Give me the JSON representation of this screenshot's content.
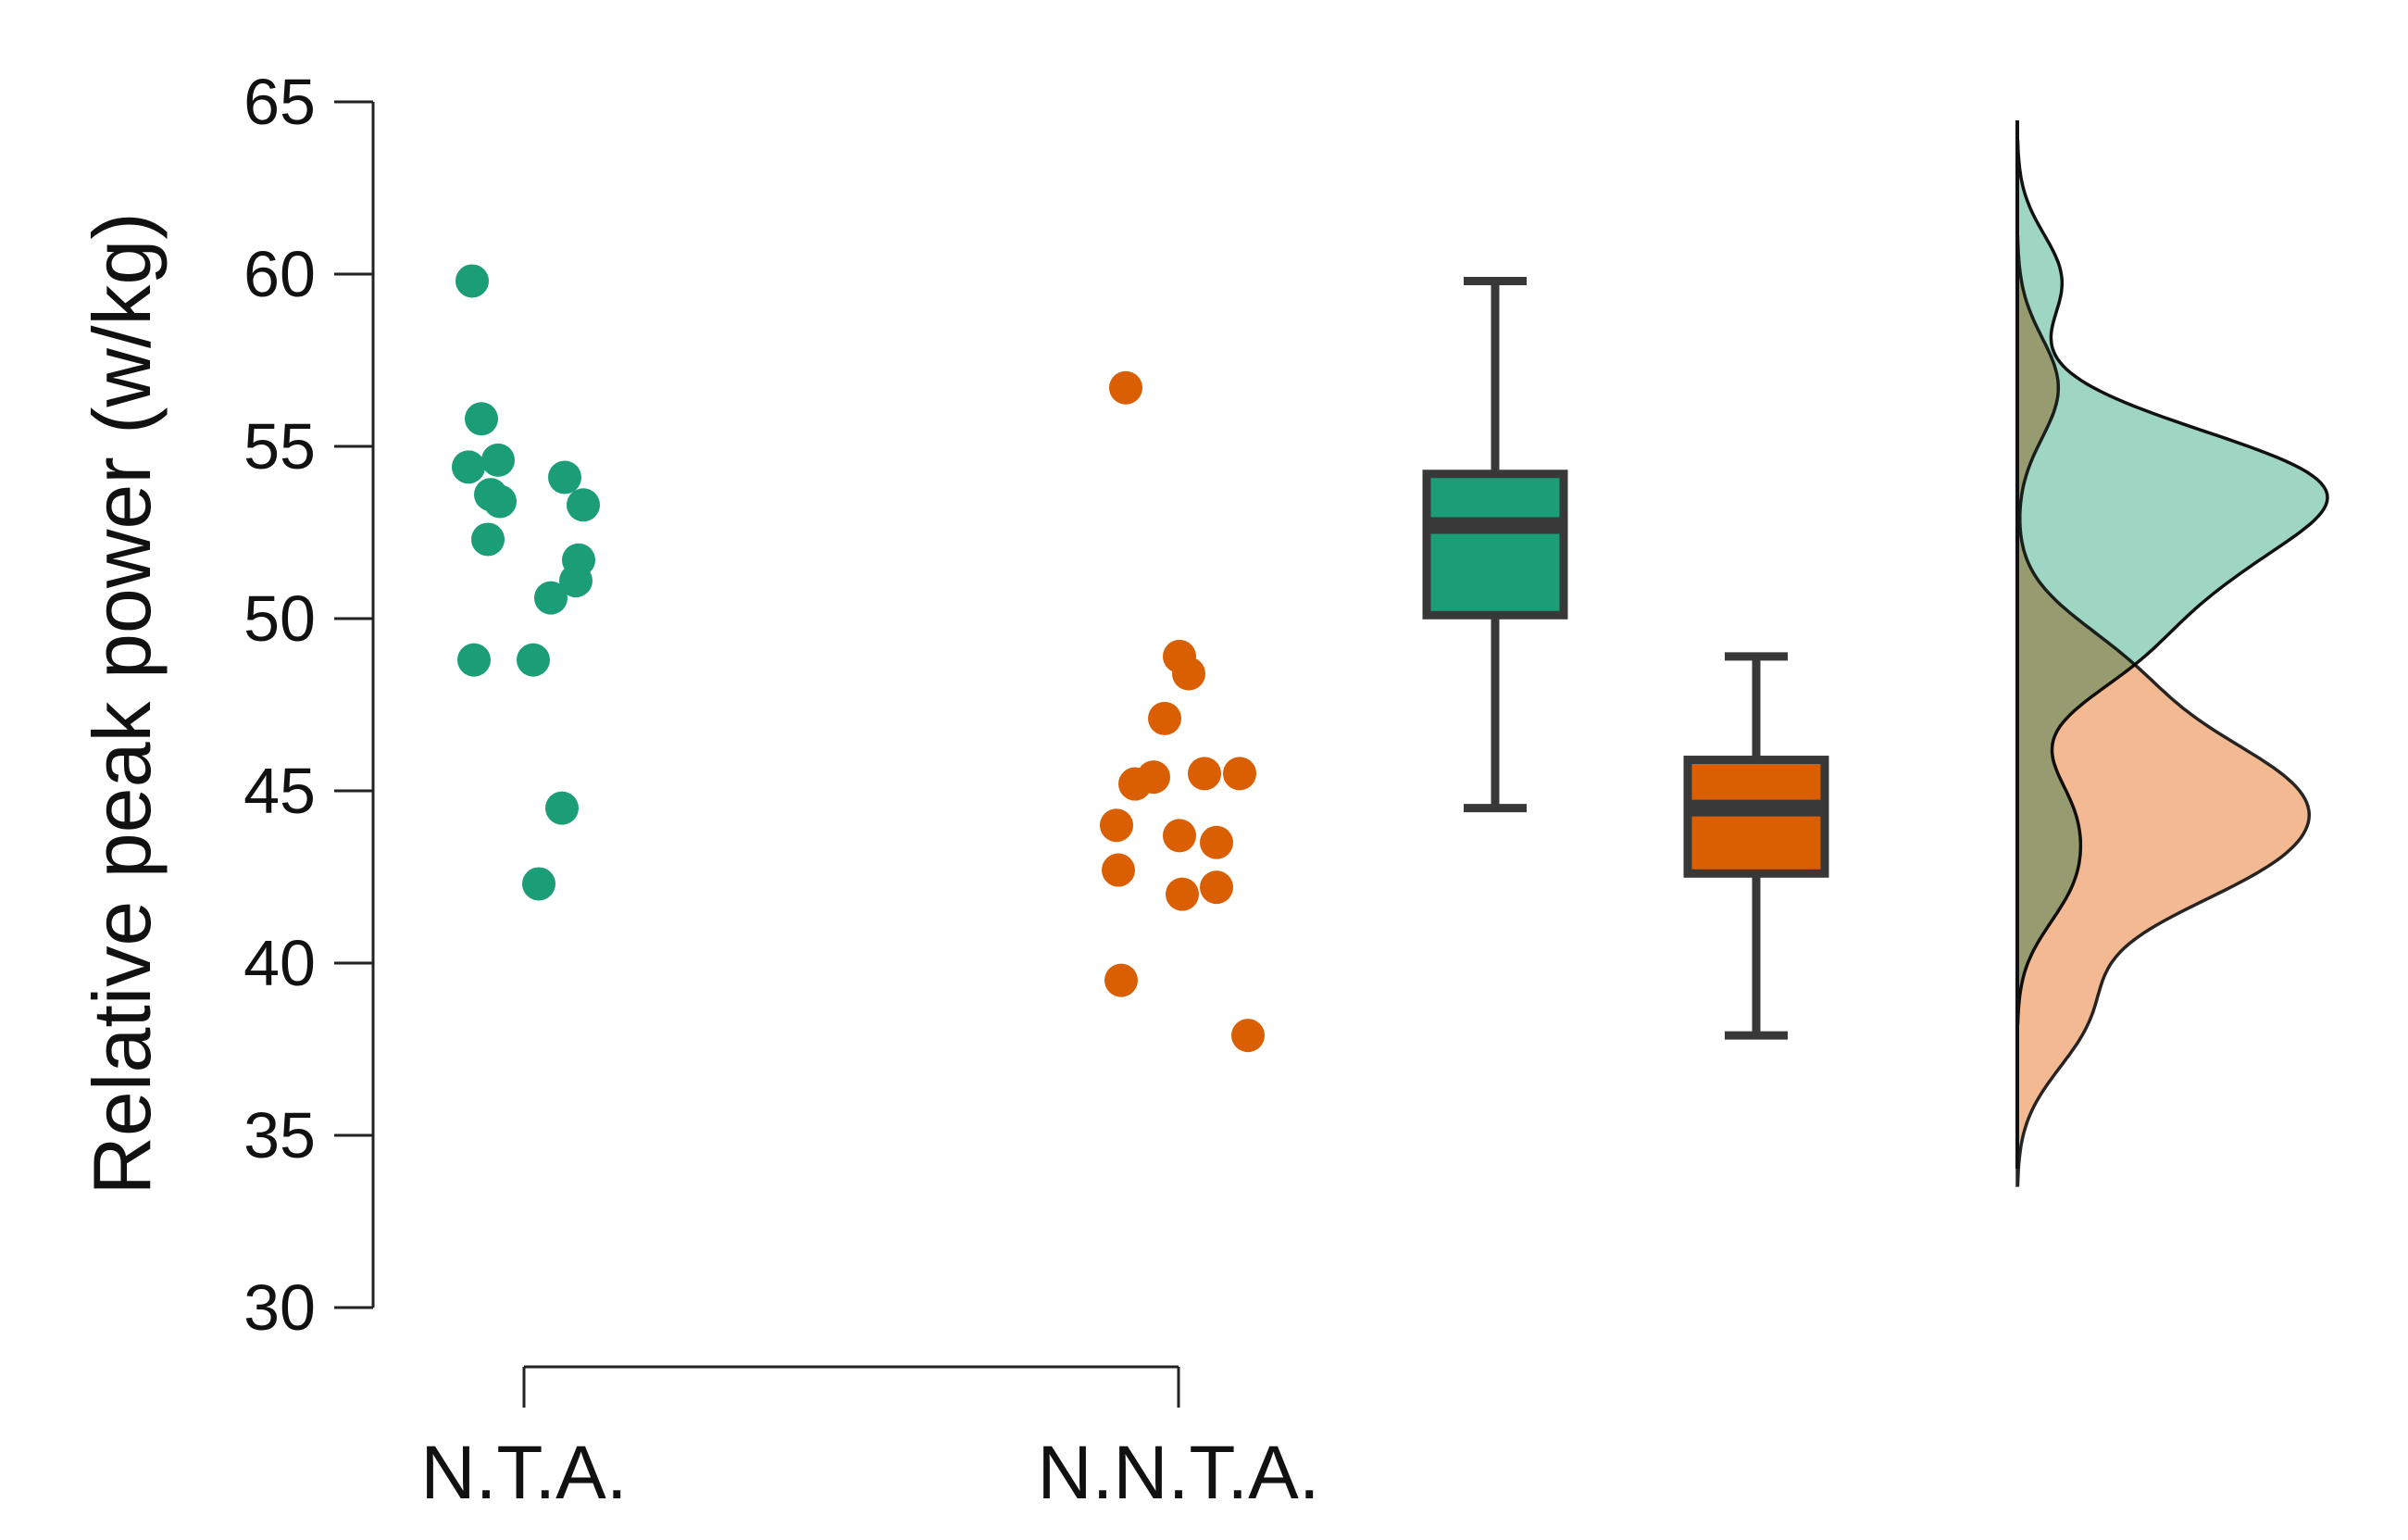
{
  "chart_data": {
    "type": "scatter",
    "subtype": "raincloud",
    "title": "",
    "xlabel": "",
    "ylabel": "Relative peak power (w/kg)",
    "ylim": [
      30,
      65
    ],
    "yticks": [
      30,
      35,
      40,
      45,
      50,
      55,
      60,
      65
    ],
    "categories": [
      "N.T.A.",
      "N.N.T.A."
    ],
    "grid": false,
    "legend": "none",
    "series": [
      {
        "category": "N.T.A.",
        "color": "#1b9e77",
        "density_color": "#8ecfb9",
        "points": [
          {
            "jitter": 0.0,
            "y": 59.8
          },
          {
            "jitter": 0.1,
            "y": 55.8
          },
          {
            "jitter": -0.04,
            "y": 54.4
          },
          {
            "jitter": 0.28,
            "y": 54.6
          },
          {
            "jitter": 1.0,
            "y": 54.1
          },
          {
            "jitter": 0.2,
            "y": 53.6
          },
          {
            "jitter": 0.3,
            "y": 53.4
          },
          {
            "jitter": 1.2,
            "y": 53.3
          },
          {
            "jitter": 0.17,
            "y": 52.3
          },
          {
            "jitter": 1.15,
            "y": 51.7
          },
          {
            "jitter": 1.12,
            "y": 51.1
          },
          {
            "jitter": 0.85,
            "y": 50.6
          },
          {
            "jitter": 0.02,
            "y": 48.8
          },
          {
            "jitter": 0.66,
            "y": 48.8
          },
          {
            "jitter": 0.97,
            "y": 44.5
          },
          {
            "jitter": 0.72,
            "y": 42.3
          }
        ],
        "box": {
          "min": 44.5,
          "q1": 50.1,
          "median": 52.7,
          "q3": 54.2,
          "max": 59.8
        }
      },
      {
        "category": "N.N.T.A.",
        "color": "#d95f02",
        "density_color": "#f0ad7f",
        "points": [
          {
            "jitter": 0.1,
            "y": 56.7
          },
          {
            "jitter": 0.68,
            "y": 48.9
          },
          {
            "jitter": 0.78,
            "y": 48.4
          },
          {
            "jitter": 0.52,
            "y": 47.1
          },
          {
            "jitter": 0.95,
            "y": 45.5
          },
          {
            "jitter": 1.33,
            "y": 45.5
          },
          {
            "jitter": 0.4,
            "y": 45.4
          },
          {
            "jitter": 0.2,
            "y": 45.2
          },
          {
            "jitter": 0.0,
            "y": 44.0
          },
          {
            "jitter": 0.68,
            "y": 43.7
          },
          {
            "jitter": 1.08,
            "y": 43.5
          },
          {
            "jitter": 0.02,
            "y": 42.7
          },
          {
            "jitter": 1.08,
            "y": 42.2
          },
          {
            "jitter": 0.71,
            "y": 42.0
          },
          {
            "jitter": 0.05,
            "y": 39.5
          },
          {
            "jitter": 1.42,
            "y": 37.9
          }
        ],
        "box": {
          "min": 37.9,
          "q1": 42.6,
          "median": 44.5,
          "q3": 45.9,
          "max": 48.9
        }
      }
    ]
  }
}
